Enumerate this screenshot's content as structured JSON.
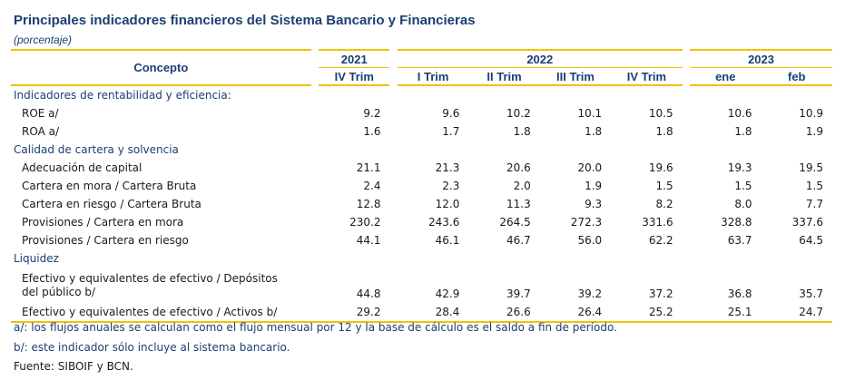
{
  "title": "Principales indicadores financieros del Sistema Bancario y Financieras",
  "subtitle": "(porcentaje)",
  "header": {
    "concept": "Concepto",
    "years": [
      "2021",
      "2022",
      "2023"
    ],
    "periods": [
      "IV Trim",
      "I Trim",
      "II Trim",
      "III Trim",
      "IV Trim",
      "ene",
      "feb"
    ]
  },
  "sections": [
    {
      "title": "Indicadores de rentabilidad y eficiencia:",
      "rows": [
        {
          "label": "ROE a/",
          "values": [
            "9.2",
            "9.6",
            "10.2",
            "10.1",
            "10.5",
            "10.6",
            "10.9"
          ]
        },
        {
          "label": "ROA a/",
          "values": [
            "1.6",
            "1.7",
            "1.8",
            "1.8",
            "1.8",
            "1.8",
            "1.9"
          ]
        }
      ]
    },
    {
      "title": "Calidad de cartera y solvencia",
      "rows": [
        {
          "label": "Adecuación de capital",
          "values": [
            "21.1",
            "21.3",
            "20.6",
            "20.0",
            "19.6",
            "19.3",
            "19.5"
          ]
        },
        {
          "label": "Cartera en mora / Cartera Bruta",
          "values": [
            "2.4",
            "2.3",
            "2.0",
            "1.9",
            "1.5",
            "1.5",
            "1.5"
          ]
        },
        {
          "label": "Cartera en riesgo / Cartera Bruta",
          "values": [
            "12.8",
            "12.0",
            "11.3",
            "9.3",
            "8.2",
            "8.0",
            "7.7"
          ]
        },
        {
          "label": "Provisiones / Cartera en mora",
          "values": [
            "230.2",
            "243.6",
            "264.5",
            "272.3",
            "331.6",
            "328.8",
            "337.6"
          ]
        },
        {
          "label": "Provisiones / Cartera en riesgo",
          "values": [
            "44.1",
            "46.1",
            "46.7",
            "56.0",
            "62.2",
            "63.7",
            "64.5"
          ]
        }
      ]
    },
    {
      "title": "Liquidez",
      "rows": [
        {
          "label_line1": "Efectivo y equivalentes de efectivo / Depósitos",
          "label_line2": "del público b/",
          "values": [
            "44.8",
            "42.9",
            "39.7",
            "39.2",
            "37.2",
            "36.8",
            "35.7"
          ]
        },
        {
          "label": "Efectivo y equivalentes de efectivo / Activos b/",
          "values": [
            "29.2",
            "28.4",
            "26.6",
            "26.4",
            "25.2",
            "25.1",
            "24.7"
          ]
        }
      ]
    }
  ],
  "notes": {
    "a": "a/: los flujos anuales se calculan como el flujo mensual por 12 y la base de cálculo es el saldo a fin de período.",
    "b": "b/: este indicador sólo incluye al sistema bancario.",
    "source": "Fuente: SIBOIF y BCN."
  }
}
